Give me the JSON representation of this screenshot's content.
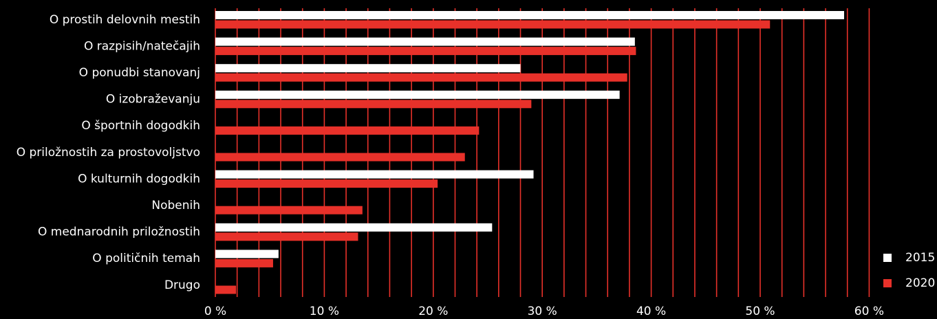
{
  "chart_data": {
    "type": "bar",
    "orientation": "horizontal",
    "categories": [
      "O prostih delovnih mestih",
      "O razpisih/natečajih",
      "O ponudbi stanovanj",
      "O izobraževanju",
      "O športnih dogodkih",
      "O priložnostih za prostovoljstvo",
      "O kulturnih dogodkih",
      "Nobenih",
      "O mednarodnih priložnostih",
      "O političnih temah",
      "Drugo"
    ],
    "series": [
      {
        "name": "2015",
        "color": "#ffffff",
        "values": [
          57.7,
          38.5,
          28.0,
          37.1,
          null,
          null,
          29.2,
          null,
          25.4,
          5.8,
          null
        ]
      },
      {
        "name": "2020",
        "color": "#e8312a",
        "values": [
          50.9,
          38.6,
          37.8,
          29.0,
          24.2,
          22.9,
          20.4,
          13.5,
          13.1,
          5.3,
          1.9
        ]
      }
    ],
    "xlim": [
      0,
      60
    ],
    "xticks": [
      0,
      10,
      20,
      30,
      40,
      50,
      60
    ],
    "xtick_labels": [
      "0 %",
      "10 %",
      "20 %",
      "30 %",
      "40 %",
      "50 %",
      "60 %"
    ],
    "minor_grid_step": 2,
    "grid": true,
    "grid_color": "#e8312a",
    "background": "#000000",
    "legend": {
      "position": "bottom-right",
      "entries": [
        "2015",
        "2020"
      ]
    }
  }
}
